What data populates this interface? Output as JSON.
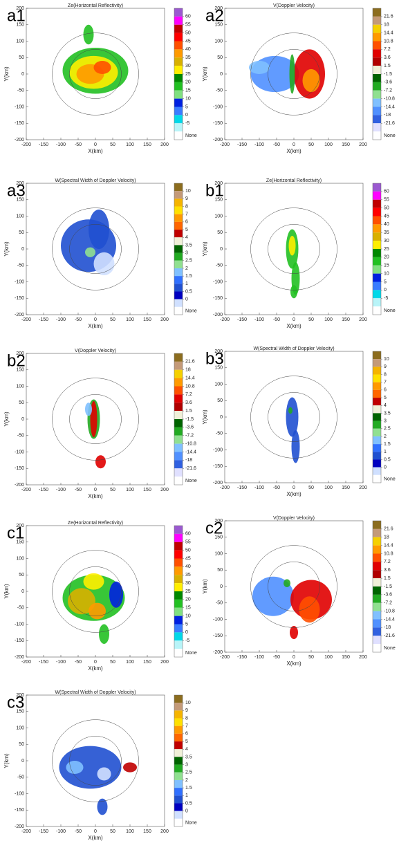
{
  "chart_data": [
    {
      "type": "radar-ppi",
      "panel": "a1",
      "title": "Ze(Horizontal Reflectivity)",
      "xlabel": "X(km)",
      "ylabel": "Y(km)",
      "xlim": [
        -200,
        200
      ],
      "ylim": [
        -200,
        200
      ],
      "xticks": [
        -200,
        -150,
        -100,
        -50,
        0,
        50,
        100,
        150,
        200
      ],
      "yticks": [
        -200,
        -150,
        -100,
        -50,
        0,
        50,
        100,
        150,
        200
      ],
      "cbar_ticks": [
        60,
        55,
        50,
        45,
        40,
        35,
        30,
        25,
        20,
        15,
        10,
        5,
        0,
        -5
      ],
      "cbar_colors": [
        "#9b59d0",
        "#ff00ff",
        "#c00000",
        "#ff0000",
        "#ff5000",
        "#ff9a00",
        "#d8b000",
        "#ffee00",
        "#008800",
        "#22c022",
        "#80e080",
        "#0020e0",
        "#3a7cff",
        "#00d8e8",
        "#b8f4f8"
      ],
      "cbar_none": "None"
    },
    {
      "type": "radar-ppi",
      "panel": "a2",
      "title": "V(Doppler Velocity)",
      "xlabel": "X(km)",
      "ylabel": "Y(km)",
      "xlim": [
        -200,
        200
      ],
      "ylim": [
        -200,
        200
      ],
      "xticks": [
        -200,
        -150,
        -100,
        -50,
        0,
        50,
        100,
        150,
        200
      ],
      "yticks": [
        -200,
        -150,
        -100,
        -50,
        0,
        50,
        100,
        150,
        200
      ],
      "cbar_ticks": [
        21.6,
        18,
        14.4,
        10.8,
        7.2,
        3.6,
        1.5,
        -1.5,
        -3.6,
        -7.2,
        -10.8,
        -14.4,
        -18,
        -21.6
      ],
      "cbar_colors": [
        "#8c6d1f",
        "#c49a78",
        "#f5d000",
        "#ff9a00",
        "#ff5000",
        "#e00000",
        "#b00000",
        "#f0f0d8",
        "#006400",
        "#22aa22",
        "#90e090",
        "#80c0ff",
        "#5090ff",
        "#3060e0",
        "#e0e0ff"
      ],
      "cbar_none": "None"
    },
    {
      "type": "radar-ppi",
      "panel": "a3",
      "title": "W(Spectral Width of Doppler Velocity)",
      "xlabel": "X(km)",
      "ylabel": "Y(km)",
      "xlim": [
        -200,
        200
      ],
      "ylim": [
        -200,
        200
      ],
      "xticks": [
        -200,
        -150,
        -100,
        -50,
        0,
        50,
        100,
        150,
        200
      ],
      "yticks": [
        -200,
        -150,
        -100,
        -50,
        0,
        50,
        100,
        150,
        200
      ],
      "cbar_ticks": [
        10,
        9,
        8,
        7,
        6,
        5,
        4,
        3.5,
        3,
        2.5,
        2,
        1.5,
        1,
        0.5,
        0
      ],
      "cbar_colors": [
        "#8c6d1f",
        "#c49a78",
        "#f5b400",
        "#ffe000",
        "#ff9900",
        "#ff6600",
        "#c00000",
        "#f0f0d8",
        "#006400",
        "#22aa22",
        "#90e090",
        "#80c0ff",
        "#3070ff",
        "#2050d0",
        "#0000c0",
        "#d0e0ff"
      ],
      "cbar_none": "None"
    },
    {
      "type": "radar-ppi",
      "panel": "b1",
      "title": "Ze(Horizontal Reflectivity)",
      "xlabel": "X(km)",
      "ylabel": "Y(km)",
      "xlim": [
        -200,
        200
      ],
      "ylim": [
        -200,
        200
      ],
      "xticks": [
        -200,
        -150,
        -100,
        -50,
        0,
        50,
        100,
        150,
        200
      ],
      "yticks": [
        -200,
        -150,
        -100,
        -50,
        0,
        50,
        100,
        150,
        200
      ],
      "cbar_ticks": [
        60,
        55,
        50,
        45,
        40,
        35,
        30,
        25,
        20,
        15,
        10,
        5,
        0,
        -5
      ],
      "cbar_colors": [
        "#9b59d0",
        "#ff00ff",
        "#c00000",
        "#ff0000",
        "#ff5000",
        "#ff9a00",
        "#d8b000",
        "#ffee00",
        "#008800",
        "#22c022",
        "#80e080",
        "#0020e0",
        "#3a7cff",
        "#00d8e8",
        "#b8f4f8"
      ],
      "cbar_none": "None"
    },
    {
      "type": "radar-ppi",
      "panel": "b2",
      "title": "V(Doppler Velocity)",
      "xlabel": "X(km)",
      "ylabel": "Y(km)",
      "xlim": [
        -200,
        200
      ],
      "ylim": [
        -200,
        200
      ],
      "xticks": [
        -200,
        -150,
        -100,
        -50,
        0,
        50,
        100,
        150,
        200
      ],
      "yticks": [
        -200,
        -150,
        -100,
        -50,
        0,
        50,
        100,
        150,
        200
      ],
      "cbar_ticks": [
        21.6,
        18,
        14.4,
        10.8,
        7.2,
        3.6,
        1.5,
        -1.5,
        -3.6,
        -7.2,
        -10.8,
        -14.4,
        -18,
        -21.6
      ],
      "cbar_colors": [
        "#8c6d1f",
        "#c49a78",
        "#f5d000",
        "#ff9a00",
        "#ff5000",
        "#e00000",
        "#b00000",
        "#f0f0d8",
        "#006400",
        "#22aa22",
        "#90e090",
        "#80c0ff",
        "#5090ff",
        "#3060e0",
        "#e0e0ff"
      ],
      "cbar_none": "None"
    },
    {
      "type": "radar-ppi",
      "panel": "b3",
      "title": "W(Spectral Width of Doppler Velocity)",
      "xlabel": "X(km)",
      "ylabel": "Y(km)",
      "xlim": [
        -200,
        200
      ],
      "ylim": [
        -200,
        200
      ],
      "xticks": [
        -200,
        -150,
        -100,
        -50,
        0,
        50,
        100,
        150,
        200
      ],
      "yticks": [
        -200,
        -150,
        -100,
        -50,
        0,
        50,
        100,
        150,
        200
      ],
      "cbar_ticks": [
        10,
        9,
        8,
        7,
        6,
        5,
        4,
        3.5,
        3,
        2.5,
        2,
        1.5,
        1,
        0.5,
        0
      ],
      "cbar_colors": [
        "#8c6d1f",
        "#c49a78",
        "#f5b400",
        "#ffe000",
        "#ff9900",
        "#ff6600",
        "#c00000",
        "#f0f0d8",
        "#006400",
        "#22aa22",
        "#90e090",
        "#80c0ff",
        "#3070ff",
        "#2050d0",
        "#0000c0",
        "#d0e0ff"
      ],
      "cbar_none": "None"
    },
    {
      "type": "radar-ppi",
      "panel": "c1",
      "title": "Ze(Horizontal Reflectivity)",
      "xlabel": "X(km)",
      "ylabel": "Y(km)",
      "xlim": [
        -200,
        200
      ],
      "ylim": [
        -200,
        200
      ],
      "xticks": [
        -200,
        -150,
        -100,
        -50,
        0,
        50,
        100,
        150,
        200
      ],
      "yticks": [
        -200,
        -150,
        -100,
        -50,
        0,
        50,
        100,
        150,
        200
      ],
      "cbar_ticks": [
        60,
        55,
        50,
        45,
        40,
        35,
        30,
        25,
        20,
        15,
        10,
        5,
        0,
        -5
      ],
      "cbar_colors": [
        "#9b59d0",
        "#ff00ff",
        "#c00000",
        "#ff0000",
        "#ff5000",
        "#ff9a00",
        "#d8b000",
        "#ffee00",
        "#008800",
        "#22c022",
        "#80e080",
        "#0020e0",
        "#3a7cff",
        "#00d8e8",
        "#b8f4f8"
      ],
      "cbar_none": "None"
    },
    {
      "type": "radar-ppi",
      "panel": "c2",
      "title": "V(Doppler Velocity)",
      "xlabel": "X(km)",
      "ylabel": "Y(km)",
      "xlim": [
        -200,
        200
      ],
      "ylim": [
        -200,
        200
      ],
      "xticks": [
        -200,
        -150,
        -100,
        -50,
        0,
        50,
        100,
        150,
        200
      ],
      "yticks": [
        -200,
        -150,
        -100,
        -50,
        0,
        50,
        100,
        150,
        200
      ],
      "cbar_ticks": [
        21.6,
        18,
        14.4,
        10.8,
        7.2,
        3.6,
        1.5,
        -1.5,
        -3.6,
        -7.2,
        -10.8,
        -14.4,
        -18,
        -21.6
      ],
      "cbar_colors": [
        "#8c6d1f",
        "#c49a78",
        "#f5d000",
        "#ff9a00",
        "#ff5000",
        "#e00000",
        "#b00000",
        "#f0f0d8",
        "#006400",
        "#22aa22",
        "#90e090",
        "#80c0ff",
        "#5090ff",
        "#3060e0",
        "#e0e0ff"
      ],
      "cbar_none": "None"
    },
    {
      "type": "radar-ppi",
      "panel": "c3",
      "title": "W(Spectral Width of Doppler Velocity)",
      "xlabel": "X(km)",
      "ylabel": "Y(km)",
      "xlim": [
        -200,
        200
      ],
      "ylim": [
        -200,
        200
      ],
      "xticks": [
        -200,
        -150,
        -100,
        -50,
        0,
        50,
        100,
        150,
        200
      ],
      "yticks": [
        -200,
        -150,
        -100,
        -50,
        0,
        50,
        100,
        150,
        200
      ],
      "cbar_ticks": [
        10,
        9,
        8,
        7,
        6,
        5,
        4,
        3.5,
        3,
        2.5,
        2,
        1.5,
        1,
        0.5,
        0
      ],
      "cbar_colors": [
        "#8c6d1f",
        "#c49a78",
        "#f5b400",
        "#ffe000",
        "#ff9900",
        "#ff6600",
        "#c00000",
        "#f0f0d8",
        "#006400",
        "#22aa22",
        "#90e090",
        "#80c0ff",
        "#3070ff",
        "#2050d0",
        "#0000c0",
        "#d0e0ff"
      ],
      "cbar_none": "None"
    }
  ]
}
